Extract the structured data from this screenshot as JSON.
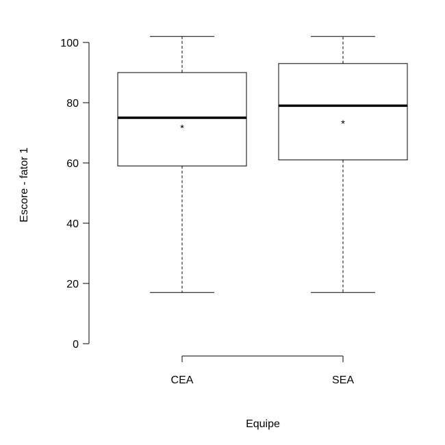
{
  "chart_data": {
    "type": "boxplot",
    "title": "",
    "xlabel": "Equipe",
    "ylabel": "Escore - fator 1",
    "ylim": [
      0,
      100
    ],
    "yticks": [
      0,
      20,
      40,
      60,
      80,
      100
    ],
    "grid": false,
    "categories": [
      "CEA",
      "SEA"
    ],
    "boxes": [
      {
        "category": "CEA",
        "whisker_low": 17,
        "q1": 59,
        "median": 75,
        "q3": 90,
        "whisker_high": 102,
        "mean": 72.5
      },
      {
        "category": "SEA",
        "whisker_low": 17,
        "q1": 61,
        "median": 79,
        "q3": 93,
        "whisker_high": 102,
        "mean": 74
      }
    ],
    "mean_marker": "*",
    "colors": {
      "box_fill": "#ffffff",
      "stroke": "#000000"
    }
  }
}
